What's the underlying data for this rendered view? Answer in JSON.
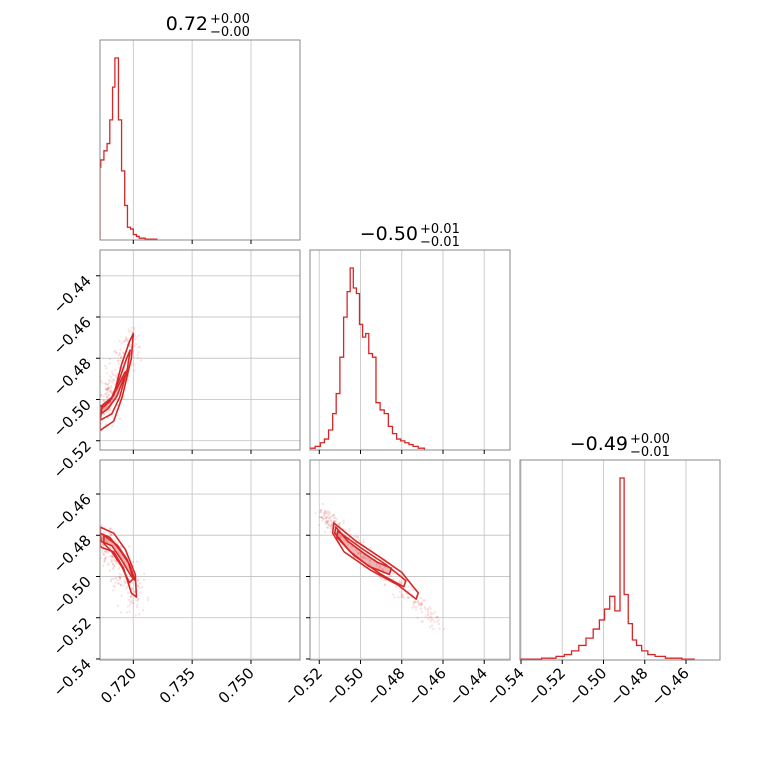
{
  "chart_data": {
    "type": "scatter",
    "subtype": "corner-plot",
    "color": "#d62728",
    "grid": true,
    "titles": [
      {
        "value": "0.72",
        "plus": "+0.00",
        "minus": "−0.00"
      },
      {
        "value": "−0.50",
        "plus": "+0.01",
        "minus": "−0.01"
      },
      {
        "value": "−0.49",
        "plus": "+0.00",
        "minus": "−0.01"
      }
    ],
    "params": [
      {
        "range": [
          0.7115,
          0.7625
        ],
        "ticks": [
          0.72,
          0.735,
          0.75
        ],
        "tick_labels": [
          "0.720",
          "0.735",
          "0.750"
        ]
      },
      {
        "range": [
          -0.5245,
          -0.4275
        ],
        "ticks": [
          -0.52,
          -0.5,
          -0.48,
          -0.46,
          -0.44
        ],
        "tick_labels": [
          "−0.52",
          "−0.50",
          "−0.48",
          "−0.46",
          "−0.44"
        ]
      },
      {
        "range": [
          -0.5405,
          -0.4435
        ],
        "ticks": [
          -0.54,
          -0.52,
          -0.5,
          -0.48,
          -0.46
        ],
        "tick_labels": [
          "−0.54",
          "−0.52",
          "−0.50",
          "−0.48",
          "−0.46"
        ]
      }
    ],
    "histograms": [
      {
        "param": 0,
        "bins": [
          [
            0.7115,
            0.7117,
            0.4
          ],
          [
            0.7117,
            0.7125,
            0.44
          ],
          [
            0.7125,
            0.7133,
            0.49
          ],
          [
            0.7133,
            0.714,
            0.53
          ],
          [
            0.714,
            0.7147,
            0.66
          ],
          [
            0.7147,
            0.7153,
            0.84
          ],
          [
            0.7153,
            0.7162,
            1.0
          ],
          [
            0.7162,
            0.717,
            0.66
          ],
          [
            0.717,
            0.7178,
            0.38
          ],
          [
            0.7178,
            0.7185,
            0.19
          ],
          [
            0.7185,
            0.7193,
            0.07
          ],
          [
            0.7193,
            0.72,
            0.06
          ],
          [
            0.72,
            0.7208,
            0.03
          ],
          [
            0.7208,
            0.7215,
            0.02
          ],
          [
            0.7215,
            0.723,
            0.01
          ],
          [
            0.723,
            0.726,
            0.005
          ]
        ]
      },
      {
        "param": 1,
        "bins": [
          [
            -0.5245,
            -0.522,
            0.01
          ],
          [
            -0.522,
            -0.5195,
            0.02
          ],
          [
            -0.5195,
            -0.5175,
            0.04
          ],
          [
            -0.5175,
            -0.5155,
            0.06
          ],
          [
            -0.5155,
            -0.5135,
            0.11
          ],
          [
            -0.5135,
            -0.5118,
            0.2
          ],
          [
            -0.5118,
            -0.51,
            0.31
          ],
          [
            -0.51,
            -0.5082,
            0.51
          ],
          [
            -0.5082,
            -0.5065,
            0.73
          ],
          [
            -0.5065,
            -0.505,
            0.87
          ],
          [
            -0.505,
            -0.5035,
            1.0
          ],
          [
            -0.5035,
            -0.502,
            0.89
          ],
          [
            -0.502,
            -0.5005,
            0.86
          ],
          [
            -0.5005,
            -0.499,
            0.69
          ],
          [
            -0.499,
            -0.4975,
            0.62
          ],
          [
            -0.4975,
            -0.496,
            0.64
          ],
          [
            -0.496,
            -0.4942,
            0.53
          ],
          [
            -0.4942,
            -0.4925,
            0.51
          ],
          [
            -0.4925,
            -0.4905,
            0.26
          ],
          [
            -0.4905,
            -0.4885,
            0.22
          ],
          [
            -0.4885,
            -0.4865,
            0.2
          ],
          [
            -0.4865,
            -0.4845,
            0.13
          ],
          [
            -0.4845,
            -0.4825,
            0.09
          ],
          [
            -0.4825,
            -0.4805,
            0.06
          ],
          [
            -0.4805,
            -0.4785,
            0.05
          ],
          [
            -0.4785,
            -0.4765,
            0.04
          ],
          [
            -0.4765,
            -0.4745,
            0.03
          ],
          [
            -0.4745,
            -0.472,
            0.02
          ],
          [
            -0.472,
            -0.469,
            0.01
          ]
        ]
      },
      {
        "param": 2,
        "bins": [
          [
            -0.5405,
            -0.53,
            0.005
          ],
          [
            -0.53,
            -0.523,
            0.01
          ],
          [
            -0.523,
            -0.519,
            0.02
          ],
          [
            -0.519,
            -0.5155,
            0.03
          ],
          [
            -0.5155,
            -0.512,
            0.05
          ],
          [
            -0.512,
            -0.5085,
            0.08
          ],
          [
            -0.5085,
            -0.505,
            0.12
          ],
          [
            -0.505,
            -0.502,
            0.17
          ],
          [
            -0.502,
            -0.4995,
            0.22
          ],
          [
            -0.4995,
            -0.497,
            0.28
          ],
          [
            -0.497,
            -0.4945,
            0.35
          ],
          [
            -0.4945,
            -0.492,
            0.27
          ],
          [
            -0.492,
            -0.49,
            1.0
          ],
          [
            -0.49,
            -0.488,
            0.36
          ],
          [
            -0.488,
            -0.486,
            0.2
          ],
          [
            -0.486,
            -0.484,
            0.11
          ],
          [
            -0.484,
            -0.4815,
            0.08
          ],
          [
            -0.4815,
            -0.4785,
            0.05
          ],
          [
            -0.4785,
            -0.475,
            0.03
          ],
          [
            -0.475,
            -0.47,
            0.02
          ],
          [
            -0.47,
            -0.462,
            0.01
          ],
          [
            -0.462,
            -0.456,
            0.005
          ]
        ]
      }
    ],
    "panels": [
      {
        "x_param": 0,
        "y_param": 1,
        "cloud": {
          "count": 260,
          "center": [
            0.7175,
            -0.4985
          ],
          "axis_from": [
            0.7117,
            -0.5065
          ],
          "axis_to": [
            0.7205,
            -0.469
          ],
          "spread": 0.004
        },
        "contours": [
          {
            "fill": 0.35,
            "points": [
              [
                0.7117,
                -0.507
              ],
              [
                0.7135,
                -0.5045
              ],
              [
                0.7158,
                -0.4985
              ],
              [
                0.7175,
                -0.49
              ],
              [
                0.7187,
                -0.4855
              ],
              [
                0.7178,
                -0.487
              ],
              [
                0.716,
                -0.494
              ],
              [
                0.714,
                -0.501
              ],
              [
                0.712,
                -0.504
              ]
            ]
          },
          {
            "fill": 0.0,
            "points": [
              [
                0.7115,
                -0.515
              ],
              [
                0.715,
                -0.5105
              ],
              [
                0.7172,
                -0.4985
              ],
              [
                0.7195,
                -0.48
              ],
              [
                0.72,
                -0.468
              ],
              [
                0.719,
                -0.472
              ],
              [
                0.717,
                -0.483
              ],
              [
                0.715,
                -0.498
              ],
              [
                0.7125,
                -0.5035
              ],
              [
                0.7115,
                -0.503
              ]
            ]
          },
          {
            "fill": 0.0,
            "points": [
              [
                0.7116,
                -0.51
              ],
              [
                0.7145,
                -0.507
              ],
              [
                0.7165,
                -0.499
              ],
              [
                0.7185,
                -0.485
              ],
              [
                0.7192,
                -0.476
              ],
              [
                0.7183,
                -0.48
              ],
              [
                0.7165,
                -0.49
              ],
              [
                0.7145,
                -0.499
              ],
              [
                0.712,
                -0.503
              ]
            ]
          }
        ]
      },
      {
        "x_param": 0,
        "y_param": 2,
        "cloud": {
          "count": 260,
          "center": [
            0.717,
            -0.488
          ],
          "axis_from": [
            0.7115,
            -0.479
          ],
          "axis_to": [
            0.7208,
            -0.512
          ],
          "spread": 0.0045
        },
        "contours": [
          {
            "fill": 0.35,
            "points": [
              [
                0.7115,
                -0.479
              ],
              [
                0.714,
                -0.481
              ],
              [
                0.7165,
                -0.487
              ],
              [
                0.719,
                -0.494
              ],
              [
                0.7205,
                -0.502
              ],
              [
                0.7195,
                -0.5
              ],
              [
                0.717,
                -0.492
              ],
              [
                0.7145,
                -0.485
              ],
              [
                0.7118,
                -0.483
              ]
            ]
          },
          {
            "fill": 0.0,
            "points": [
              [
                0.7115,
                -0.476
              ],
              [
                0.715,
                -0.479
              ],
              [
                0.718,
                -0.487
              ],
              [
                0.7205,
                -0.499
              ],
              [
                0.7208,
                -0.51
              ],
              [
                0.7195,
                -0.508
              ],
              [
                0.7175,
                -0.496
              ],
              [
                0.715,
                -0.488
              ],
              [
                0.712,
                -0.486
              ],
              [
                0.7115,
                -0.485
              ]
            ]
          },
          {
            "fill": 0.0,
            "points": [
              [
                0.7125,
                -0.48
              ],
              [
                0.716,
                -0.485
              ],
              [
                0.7185,
                -0.492
              ],
              [
                0.72,
                -0.501
              ],
              [
                0.719,
                -0.503
              ],
              [
                0.717,
                -0.495
              ],
              [
                0.7145,
                -0.488
              ],
              [
                0.7125,
                -0.484
              ]
            ]
          }
        ]
      },
      {
        "x_param": 1,
        "y_param": 2,
        "cloud": {
          "count": 320,
          "center": [
            -0.496,
            -0.492
          ],
          "axis_from": [
            -0.5185,
            -0.47
          ],
          "axis_to": [
            -0.462,
            -0.523
          ],
          "spread": 0.0025
        },
        "contours": [
          {
            "fill": 0.35,
            "points": [
              [
                -0.512,
                -0.476
              ],
              [
                -0.506,
                -0.483
              ],
              [
                -0.498,
                -0.489
              ],
              [
                -0.492,
                -0.493
              ],
              [
                -0.485,
                -0.496
              ],
              [
                -0.486,
                -0.499
              ],
              [
                -0.496,
                -0.495
              ],
              [
                -0.505,
                -0.488
              ],
              [
                -0.5125,
                -0.479
              ]
            ]
          },
          {
            "fill": 0.0,
            "points": [
              [
                -0.513,
                -0.474
              ],
              [
                -0.502,
                -0.483
              ],
              [
                -0.49,
                -0.491
              ],
              [
                -0.48,
                -0.498
              ],
              [
                -0.472,
                -0.508
              ],
              [
                -0.473,
                -0.511
              ],
              [
                -0.482,
                -0.504
              ],
              [
                -0.495,
                -0.497
              ],
              [
                -0.508,
                -0.488
              ],
              [
                -0.5135,
                -0.479
              ]
            ]
          },
          {
            "fill": 0.0,
            "points": [
              [
                -0.511,
                -0.478
              ],
              [
                -0.5,
                -0.486
              ],
              [
                -0.488,
                -0.494
              ],
              [
                -0.478,
                -0.502
              ],
              [
                -0.479,
                -0.505
              ],
              [
                -0.49,
                -0.499
              ],
              [
                -0.503,
                -0.49
              ],
              [
                -0.5115,
                -0.481
              ]
            ]
          }
        ]
      }
    ]
  }
}
